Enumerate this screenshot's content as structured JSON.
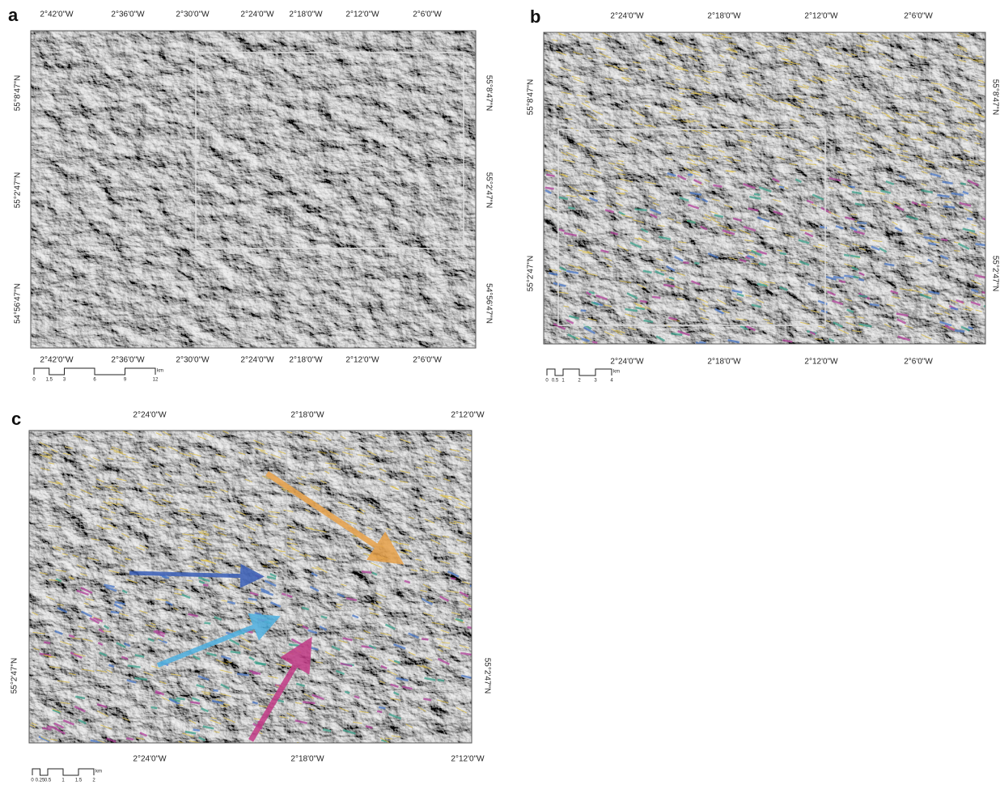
{
  "panels": [
    {
      "label": "a",
      "top_ticks": [
        "2°42'0\"W",
        "2°36'0\"W",
        "2°30'0\"W",
        "2°24'0\"W",
        "2°18'0\"W",
        "2°12'0\"W",
        "2°6'0\"W"
      ],
      "bottom_ticks": [
        "2°42'0\"W",
        "2°36'0\"W",
        "2°30'0\"W",
        "2°24'0\"W",
        "2°18'0\"W",
        "2°12'0\"W",
        "2°6'0\"W"
      ],
      "left_ticks": [
        "55°8'47\"N",
        "55°2'47\"N",
        "54°56'47\"N"
      ],
      "right_ticks": [
        "55°8'47\"N",
        "55°2'47\"N",
        "54°56'47\"N"
      ],
      "scale_ticks": [
        "0",
        "1.5",
        "3",
        "6",
        "9",
        "12"
      ],
      "scale_unit": "km"
    },
    {
      "label": "b",
      "top_ticks": [
        "2°24'0\"W",
        "2°18'0\"W",
        "2°12'0\"W",
        "2°6'0\"W"
      ],
      "bottom_ticks": [
        "2°24'0\"W",
        "2°18'0\"W",
        "2°12'0\"W",
        "2°6'0\"W"
      ],
      "left_ticks": [
        "55°8'47\"N",
        "55°2'47\"N"
      ],
      "right_ticks": [
        "55°8'47\"N",
        "55°2'47\"N"
      ],
      "scale_ticks": [
        "0",
        "0.5",
        "1",
        "2",
        "3",
        "4"
      ],
      "scale_unit": "km"
    },
    {
      "label": "c",
      "top_ticks": [
        "2°24'0\"W",
        "2°18'0\"W",
        "2°12'0\"W"
      ],
      "bottom_ticks": [
        "2°24'0\"W",
        "2°18'0\"W",
        "2°12'0\"W"
      ],
      "left_ticks": [
        "55°2'47\"N"
      ],
      "right_ticks": [
        "55°2'47\"N"
      ],
      "scale_ticks": [
        "0",
        "0.25",
        "0.5",
        "1",
        "1.5",
        "2"
      ],
      "scale_unit": "km"
    }
  ]
}
